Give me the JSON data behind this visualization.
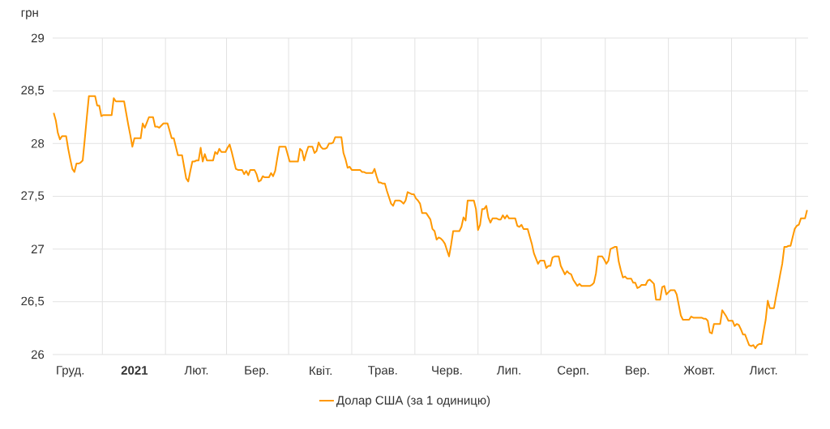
{
  "chart_data": {
    "type": "line",
    "ylabel": "грн",
    "categories": [
      null,
      null,
      null,
      null,
      null,
      null,
      null,
      null,
      "Груд.",
      null,
      null,
      null,
      null,
      null,
      null,
      null,
      null,
      null,
      null,
      null,
      null,
      null,
      null,
      null,
      null,
      null,
      null,
      null,
      null,
      null,
      null,
      null,
      null,
      null,
      null,
      null,
      null,
      null,
      null,
      "**2021**",
      null,
      null,
      null,
      null,
      null,
      null,
      null,
      null,
      null,
      null,
      null,
      null,
      null,
      null,
      null,
      null,
      null,
      null,
      null,
      null,
      null,
      null,
      null,
      null,
      null,
      null,
      null,
      null,
      null,
      "Лют.",
      null,
      null,
      null,
      null,
      null,
      null,
      null,
      null,
      null,
      null,
      null,
      null,
      null,
      null,
      null,
      null,
      null,
      null,
      null,
      null,
      null,
      null,
      null,
      null,
      null,
      null,
      null,
      null,
      "Бер.",
      null,
      null,
      null,
      null,
      null,
      null,
      null,
      null,
      null,
      null,
      null,
      null,
      null,
      null,
      null,
      null,
      null,
      null,
      null,
      null,
      null,
      null,
      null,
      null,
      null,
      null,
      null,
      null,
      null,
      null,
      "Квіт.",
      null,
      null,
      null,
      null,
      null,
      null,
      null,
      null,
      null,
      null,
      null,
      null,
      null,
      null,
      null,
      null,
      null,
      null,
      null,
      null,
      null,
      null,
      null,
      null,
      null,
      null,
      null,
      null,
      null,
      "Трав.",
      null,
      null,
      null,
      null,
      null,
      null,
      null,
      null,
      null,
      null,
      null,
      null,
      null,
      null,
      null,
      null,
      null,
      null,
      null,
      null,
      null,
      null,
      null,
      null,
      null,
      null,
      null,
      null,
      null,
      null,
      "Черв.",
      null,
      null,
      null,
      null,
      null,
      null,
      null,
      null,
      null,
      null,
      null,
      null,
      null,
      null,
      null,
      null,
      null,
      null,
      null,
      null,
      null,
      null,
      null,
      null,
      null,
      null,
      null,
      null,
      null,
      "Лип.",
      null,
      null,
      null,
      null,
      null,
      null,
      null,
      null,
      null,
      null,
      null,
      null,
      null,
      null,
      null,
      null,
      null,
      null,
      null,
      null,
      null,
      null,
      null,
      null,
      null,
      null,
      null,
      null,
      null,
      null,
      "Серп.",
      null,
      null,
      null,
      null,
      null,
      null,
      null,
      null,
      null,
      null,
      null,
      null,
      null,
      null,
      null,
      null,
      null,
      null,
      null,
      null,
      null,
      null,
      null,
      null,
      null,
      null,
      null,
      null,
      null,
      null,
      "Вер.",
      null,
      null,
      null,
      null,
      null,
      null,
      null,
      null,
      null,
      null,
      null,
      null,
      null,
      null,
      null,
      null,
      null,
      null,
      null,
      null,
      null,
      null,
      null,
      null,
      null,
      null,
      null,
      null,
      null,
      "Жовт.",
      null,
      null,
      null,
      null,
      null,
      null,
      null,
      null,
      null,
      null,
      null,
      null,
      null,
      null,
      null,
      null,
      null,
      null,
      null,
      null,
      null,
      null,
      null,
      null,
      null,
      null,
      null,
      null,
      null,
      null,
      "Лист.",
      null,
      null,
      null,
      null,
      null,
      null,
      null,
      null,
      null,
      null,
      null,
      null,
      null,
      null,
      null,
      null,
      null,
      null,
      null,
      null,
      null
    ],
    "series": [
      {
        "name": "Долар США (за 1 одиницю)",
        "color": "#ff9800",
        "values": [
          28.29,
          28.22,
          28.1,
          28.04,
          28.07,
          28.07,
          28.07,
          27.95,
          27.85,
          27.76,
          27.73,
          27.81,
          27.81,
          27.82,
          27.84,
          28.04,
          28.25,
          28.45,
          28.45,
          28.45,
          28.45,
          28.36,
          28.36,
          28.26,
          28.27,
          28.27,
          28.27,
          28.27,
          28.27,
          28.43,
          28.4,
          28.4,
          28.4,
          28.4,
          28.4,
          28.29,
          28.18,
          28.08,
          27.97,
          28.05,
          28.05,
          28.05,
          28.05,
          28.19,
          28.15,
          28.2,
          28.25,
          28.25,
          28.25,
          28.16,
          28.16,
          28.15,
          28.17,
          28.19,
          28.19,
          28.19,
          28.12,
          28.05,
          28.05,
          27.97,
          27.89,
          27.89,
          27.89,
          27.78,
          27.67,
          27.64,
          27.74,
          27.83,
          27.83,
          27.84,
          27.84,
          27.96,
          27.83,
          27.9,
          27.84,
          27.84,
          27.84,
          27.84,
          27.92,
          27.9,
          27.95,
          27.92,
          27.92,
          27.92,
          27.96,
          27.99,
          27.92,
          27.84,
          27.76,
          27.75,
          27.75,
          27.75,
          27.71,
          27.74,
          27.7,
          27.75,
          27.75,
          27.75,
          27.71,
          27.64,
          27.65,
          27.69,
          27.68,
          27.68,
          27.68,
          27.72,
          27.69,
          27.74,
          27.86,
          27.97,
          27.97,
          27.97,
          27.97,
          27.9,
          27.83,
          27.83,
          27.83,
          27.83,
          27.83,
          27.95,
          27.93,
          27.84,
          27.91,
          27.97,
          27.97,
          27.97,
          27.91,
          27.93,
          28.01,
          27.97,
          27.95,
          27.95,
          27.96,
          28.0,
          28.0,
          28.01,
          28.06,
          28.06,
          28.06,
          28.06,
          27.91,
          27.85,
          27.77,
          27.78,
          27.75,
          27.75,
          27.75,
          27.75,
          27.75,
          27.73,
          27.73,
          27.72,
          27.72,
          27.72,
          27.72,
          27.76,
          27.69,
          27.63,
          27.63,
          27.62,
          27.62,
          27.55,
          27.49,
          27.43,
          27.41,
          27.46,
          27.46,
          27.46,
          27.45,
          27.43,
          27.46,
          27.54,
          27.53,
          27.52,
          27.52,
          27.48,
          27.46,
          27.43,
          27.34,
          27.34,
          27.34,
          27.31,
          27.28,
          27.19,
          27.17,
          27.09,
          27.11,
          27.1,
          27.08,
          27.05,
          26.99,
          26.93,
          27.04,
          27.17,
          27.17,
          27.17,
          27.17,
          27.21,
          27.3,
          27.27,
          27.46,
          27.46,
          27.46,
          27.46,
          27.38,
          27.18,
          27.23,
          27.38,
          27.38,
          27.41,
          27.3,
          27.25,
          27.29,
          27.29,
          27.29,
          27.28,
          27.28,
          27.32,
          27.29,
          27.32,
          27.29,
          27.29,
          27.29,
          27.29,
          27.22,
          27.21,
          27.23,
          27.19,
          27.19,
          27.19,
          27.12,
          27.05,
          26.96,
          26.91,
          26.86,
          26.89,
          26.89,
          26.89,
          26.82,
          26.84,
          26.84,
          26.92,
          26.93,
          26.93,
          26.93,
          26.84,
          26.8,
          26.76,
          26.79,
          26.77,
          26.76,
          26.71,
          26.68,
          26.65,
          26.67,
          26.65,
          26.65,
          26.65,
          26.65,
          26.65,
          26.66,
          26.68,
          26.77,
          26.93,
          26.93,
          26.93,
          26.9,
          26.86,
          26.89,
          27.0,
          27.01,
          27.02,
          27.02,
          26.88,
          26.8,
          26.73,
          26.74,
          26.72,
          26.72,
          26.72,
          26.68,
          26.68,
          26.63,
          26.64,
          26.66,
          26.66,
          26.66,
          26.7,
          26.71,
          26.69,
          26.67,
          26.52,
          26.52,
          26.52,
          26.64,
          26.65,
          26.57,
          26.59,
          26.61,
          26.61,
          26.61,
          26.57,
          26.47,
          26.37,
          26.33,
          26.33,
          26.33,
          26.33,
          26.36,
          26.35,
          26.35,
          26.35,
          26.35,
          26.35,
          26.34,
          26.34,
          26.32,
          26.21,
          26.2,
          26.29,
          26.29,
          26.29,
          26.29,
          26.42,
          26.39,
          26.36,
          26.32,
          26.32,
          26.32,
          26.27,
          26.29,
          26.28,
          26.24,
          26.19,
          26.19,
          26.14,
          26.09,
          26.08,
          26.09,
          26.06,
          26.09,
          26.1,
          26.1,
          26.22,
          26.33,
          26.51,
          26.44,
          26.44,
          26.44,
          26.55,
          26.65,
          26.76,
          26.86,
          27.02,
          27.02,
          27.03,
          27.03,
          27.11,
          27.19,
          27.22,
          27.23,
          27.29,
          27.29,
          27.29,
          27.37
        ]
      }
    ],
    "ylim": [
      26,
      29
    ],
    "yticks": [
      26,
      {
        "value": 26.5,
        "label": "26,5"
      },
      27,
      {
        "value": 27.5,
        "label": "27,5"
      },
      28,
      {
        "value": 28.5,
        "label": "28,5"
      },
      29
    ],
    "grid": true,
    "legend": "bottom",
    "line_style": "solid"
  }
}
